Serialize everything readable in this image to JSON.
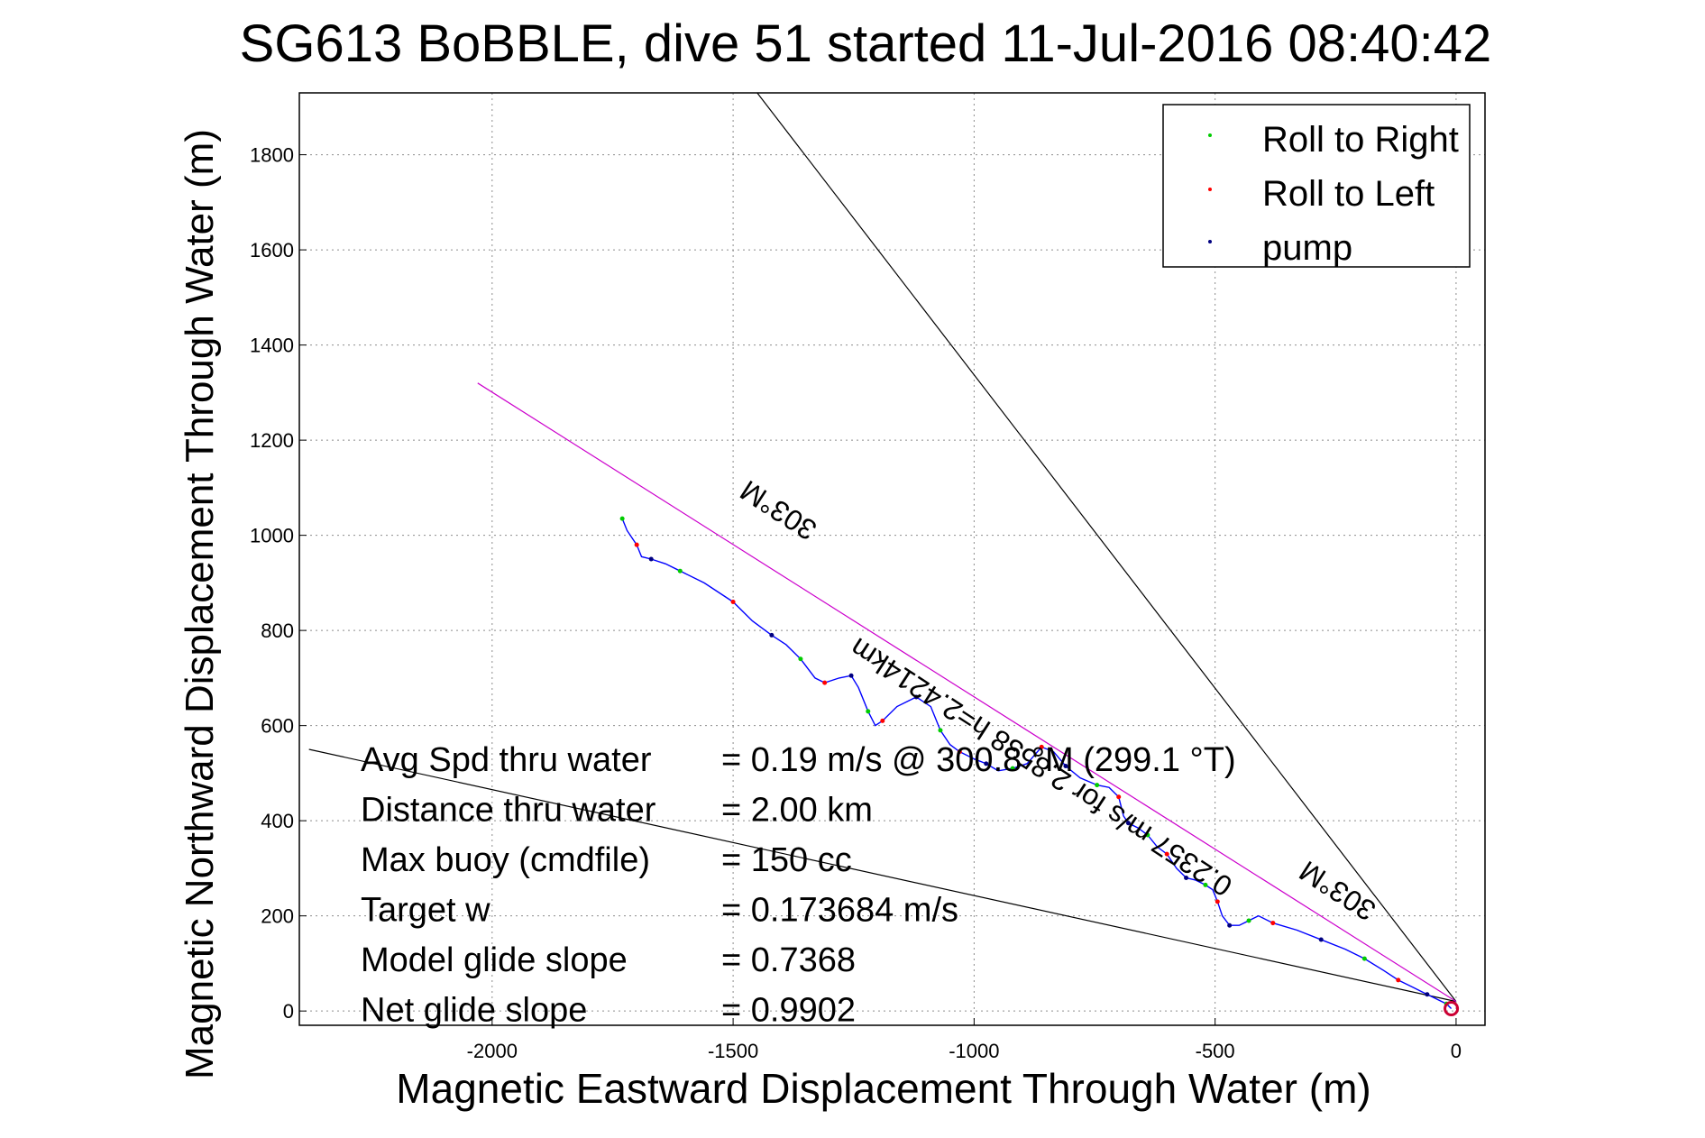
{
  "chart_data": {
    "type": "line",
    "title": "SG613 BoBBLE, dive 51 started 11-Jul-2016 08:40:42",
    "xlabel": "Magnetic Eastward Displacement Through Water (m)",
    "ylabel": "Magnetic Northward Displacement Through Water (m)",
    "xlim": [
      -2400,
      60
    ],
    "ylim": [
      -30,
      1930
    ],
    "grid": true,
    "xticks": [
      -2000,
      -1500,
      -1000,
      -500,
      0
    ],
    "yticks": [
      0,
      200,
      400,
      600,
      800,
      1000,
      1200,
      1400,
      1600,
      1800
    ],
    "legend_position": "top-right",
    "legend": [
      {
        "label": "Roll to Right",
        "color": "#00cc00"
      },
      {
        "label": "Roll to Left",
        "color": "#ff0000"
      },
      {
        "label": "pump",
        "color": "#000080"
      }
    ],
    "series": [
      {
        "color": "#0000ff",
        "x": [
          -1730,
          -1720,
          -1700,
          -1690,
          -1670,
          -1640,
          -1610,
          -1560,
          -1500,
          -1460,
          -1420,
          -1390,
          -1360,
          -1330,
          -1310,
          -1280,
          -1255,
          -1240,
          -1220,
          -1205,
          -1190,
          -1160,
          -1120,
          -1090,
          -1070,
          -1050,
          -1030,
          -1000,
          -975,
          -950,
          -920,
          -890,
          -860,
          -835,
          -810,
          -780,
          -745,
          -720,
          -700,
          -690,
          -680,
          -660,
          -640,
          -620,
          -600,
          -580,
          -560,
          -540,
          -520,
          -505,
          -495,
          -485,
          -470,
          -450,
          -430,
          -410,
          -380,
          -330,
          -280,
          -230,
          -190,
          -150,
          -120,
          -90,
          -60,
          -40,
          -20,
          -10
        ],
        "y": [
          1035,
          1010,
          980,
          955,
          950,
          940,
          925,
          900,
          860,
          820,
          790,
          770,
          740,
          700,
          690,
          700,
          705,
          680,
          630,
          600,
          610,
          640,
          660,
          640,
          590,
          560,
          545,
          530,
          520,
          505,
          510,
          520,
          555,
          545,
          515,
          490,
          475,
          470,
          450,
          410,
          395,
          385,
          370,
          345,
          330,
          300,
          280,
          275,
          265,
          255,
          230,
          200,
          180,
          180,
          190,
          200,
          185,
          170,
          150,
          130,
          110,
          85,
          65,
          50,
          35,
          25,
          15,
          5
        ]
      }
    ],
    "reference_lines": [
      {
        "color": "#000000",
        "x": [
          -1450,
          0
        ],
        "y": [
          1930,
          20
        ]
      },
      {
        "color": "#000000",
        "x": [
          -2380,
          0
        ],
        "y": [
          550,
          20
        ]
      },
      {
        "color": "#cc00cc",
        "x": [
          -2030,
          0
        ],
        "y": [
          1320,
          20
        ]
      }
    ],
    "curve_labels": [
      {
        "text": "303°M",
        "x": -1395,
        "y": 1070,
        "angle": 33
      },
      {
        "text": "303°M",
        "x": -235,
        "y": 270,
        "angle": 33
      },
      {
        "text": "0.2357 m/s for 2.8538 h=2.4214km",
        "x": -850,
        "y": 530,
        "angle": 33
      }
    ],
    "stats": [
      {
        "label": "Avg Spd thru water",
        "value": "=  0.19 m/s @ 300.8 °M (299.1 °T)"
      },
      {
        "label": "Distance thru water",
        "value": "=  2.00 km"
      },
      {
        "label": "Max buoy (cmdfile)",
        "value": "= 150 cc"
      },
      {
        "label": "Target w",
        "value": "= 0.173684 m/s"
      },
      {
        "label": "Model glide slope",
        "value": "= 0.7368"
      },
      {
        "label": "Net glide slope",
        "value": "= 0.9902"
      }
    ]
  }
}
